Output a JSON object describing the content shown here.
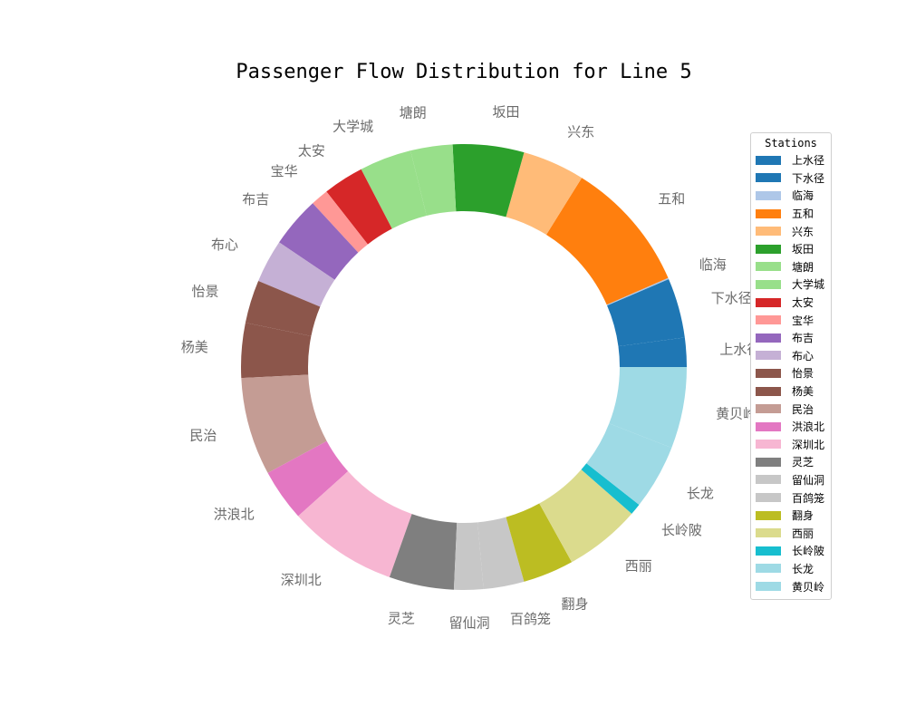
{
  "chart_data": {
    "type": "pie",
    "donut": true,
    "title": "Passenger Flow Distribution for Line 5",
    "legend_title": "Stations",
    "legend_placement": "right",
    "start_angle_deg": 0,
    "slices": [
      {
        "label": "上水径",
        "value": 2.3,
        "color": "#1f77b4"
      },
      {
        "label": "下水径",
        "value": 4.7,
        "color": "#1f77b4"
      },
      {
        "label": "临海",
        "value": 0.1,
        "color": "#aec7e8"
      },
      {
        "label": "五和",
        "value": 10.4,
        "color": "#ff7f0e"
      },
      {
        "label": "兴东",
        "value": 4.9,
        "color": "#ffbb78"
      },
      {
        "label": "坂田",
        "value": 5.6,
        "color": "#2ca02c"
      },
      {
        "label": "塘朗",
        "value": 3.3,
        "color": "#98df8a"
      },
      {
        "label": "大学城",
        "value": 4.1,
        "color": "#98df8a"
      },
      {
        "label": "太安",
        "value": 3.2,
        "color": "#d62728"
      },
      {
        "label": "宝华",
        "value": 1.4,
        "color": "#ff9896"
      },
      {
        "label": "布吉",
        "value": 4.0,
        "color": "#9467bd"
      },
      {
        "label": "布心",
        "value": 3.4,
        "color": "#c5b0d5"
      },
      {
        "label": "怡景",
        "value": 3.4,
        "color": "#8c564b"
      },
      {
        "label": "杨美",
        "value": 4.3,
        "color": "#8c564b"
      },
      {
        "label": "民治",
        "value": 7.7,
        "color": "#c49c94"
      },
      {
        "label": "洪浪北",
        "value": 4.1,
        "color": "#e377c2"
      },
      {
        "label": "深圳北",
        "value": 8.6,
        "color": "#f7b6d2"
      },
      {
        "label": "灵芝",
        "value": 5.1,
        "color": "#7f7f7f"
      },
      {
        "label": "留仙洞",
        "value": 2.3,
        "color": "#c7c7c7"
      },
      {
        "label": "百鸽笼",
        "value": 3.2,
        "color": "#c7c7c7"
      },
      {
        "label": "翻身",
        "value": 4.0,
        "color": "#bcbd22"
      },
      {
        "label": "西丽",
        "value": 6.0,
        "color": "#dbdb8d"
      },
      {
        "label": "长岭陂",
        "value": 0.9,
        "color": "#17becf"
      },
      {
        "label": "长龙",
        "value": 5.1,
        "color": "#9edae5"
      },
      {
        "label": "黄贝岭",
        "value": 6.4,
        "color": "#9edae5"
      }
    ]
  }
}
